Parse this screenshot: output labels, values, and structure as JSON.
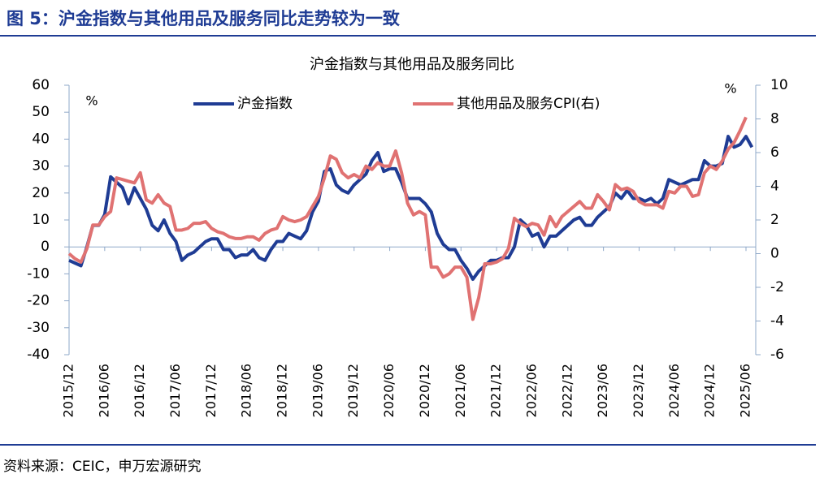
{
  "figure_title": "图 5：沪金指数与其他用品及服务同比走势较为一致",
  "source": "资料来源：CEIC，申万宏源研究",
  "chart_data": {
    "type": "line",
    "title": "沪金指数与其他用品及服务同比",
    "y_label": "%",
    "y2_label": "%",
    "legend": "top",
    "categories": [
      "2015/12",
      null,
      null,
      null,
      null,
      null,
      "2016/06",
      null,
      null,
      null,
      null,
      null,
      "2016/12",
      null,
      null,
      null,
      null,
      null,
      "2017/06",
      null,
      null,
      null,
      null,
      null,
      "2017/12",
      null,
      null,
      null,
      null,
      null,
      "2018/06",
      null,
      null,
      null,
      null,
      null,
      "2018/12",
      null,
      null,
      null,
      null,
      null,
      "2019/06",
      null,
      null,
      null,
      null,
      null,
      "2019/12",
      null,
      null,
      null,
      null,
      null,
      "2020/06",
      null,
      null,
      null,
      null,
      null,
      "2020/12",
      null,
      null,
      null,
      null,
      null,
      "2021/06",
      null,
      null,
      null,
      null,
      null,
      "2021/12",
      null,
      null,
      null,
      null,
      null,
      "2022/06",
      null,
      null,
      null,
      null,
      null,
      "2022/12",
      null,
      null,
      null,
      null,
      null,
      "2023/06",
      null,
      null,
      null,
      null,
      null,
      "2023/12",
      null,
      null,
      null,
      null,
      null,
      "2024/06",
      null,
      null,
      null,
      null,
      null,
      "2024/12",
      null,
      null,
      null,
      null,
      null,
      "2025/06",
      null
    ],
    "series": [
      {
        "name": "沪金指数",
        "color": "#1f3c94",
        "axis": "y",
        "values": [
          -5,
          -6,
          -7,
          0,
          8,
          8,
          12,
          26,
          24,
          22,
          16,
          22,
          18,
          14,
          8,
          6,
          10,
          5,
          2,
          -5,
          -3,
          -2,
          0,
          2,
          3,
          3,
          -1,
          -1,
          -4,
          -3,
          -3,
          -1,
          -4,
          -5,
          -1,
          2,
          2,
          5,
          4,
          3,
          6,
          13,
          17,
          28,
          29,
          23,
          21,
          20,
          23,
          25,
          27,
          32,
          35,
          28,
          29,
          29,
          24,
          18,
          18,
          18,
          16,
          13,
          5,
          1,
          -1,
          -1,
          -5,
          -8,
          -12,
          -9,
          -7,
          -5,
          -5,
          -4,
          -4,
          0,
          10,
          8,
          4,
          5,
          0,
          4,
          4,
          6,
          8,
          10,
          11,
          8,
          8,
          11,
          13,
          15,
          20,
          18,
          21,
          18,
          18,
          17,
          18,
          16,
          18,
          25,
          24,
          23,
          24,
          25,
          25,
          32,
          30,
          30,
          31,
          41,
          37,
          38,
          41,
          37
        ]
      },
      {
        "name": "其他用品及服务CPI(右)",
        "color": "#e07272",
        "axis": "y2",
        "values": [
          0,
          -0.3,
          -0.5,
          0.3,
          1.7,
          1.7,
          2.2,
          2.5,
          4.5,
          4.4,
          4.3,
          4.2,
          4.8,
          3.2,
          3.0,
          3.5,
          3.0,
          2.8,
          1.4,
          1.4,
          1.5,
          1.8,
          1.8,
          1.9,
          1.5,
          1.3,
          1.2,
          1.0,
          0.9,
          0.9,
          1.0,
          1.0,
          0.8,
          1.2,
          1.4,
          1.5,
          2.2,
          2.0,
          1.9,
          2.0,
          2.2,
          2.8,
          3.4,
          4.5,
          5.8,
          5.6,
          4.8,
          4.5,
          4.7,
          4.5,
          5.2,
          5.0,
          5.4,
          5.2,
          5.2,
          6.1,
          4.8,
          3.0,
          2.3,
          2.5,
          2.3,
          -0.8,
          -0.8,
          -1.4,
          -1.2,
          -0.8,
          -0.8,
          -1.4,
          -3.9,
          -2.6,
          -0.6,
          -0.6,
          -0.5,
          -0.3,
          0.3,
          2.1,
          1.8,
          1.6,
          1.8,
          1.7,
          1.1,
          2.2,
          1.6,
          2.2,
          2.5,
          2.8,
          3.1,
          2.7,
          2.7,
          3.5,
          3.1,
          2.6,
          4.1,
          3.8,
          3.9,
          3.7,
          3.1,
          2.9,
          2.9,
          2.9,
          2.7,
          3.7,
          3.6,
          4.0,
          4.0,
          3.4,
          3.5,
          4.8,
          5.2,
          5.0,
          5.5,
          6.2,
          6.6,
          7.3,
          8.1,
          null
        ]
      }
    ],
    "ylim": [
      -40,
      60
    ],
    "yticks": [
      -40,
      -30,
      -20,
      -10,
      0,
      10,
      20,
      30,
      40,
      50,
      60
    ],
    "y2lim": [
      -6,
      10
    ],
    "y2ticks": [
      -6,
      -4,
      -2,
      0,
      2,
      4,
      6,
      8,
      10
    ]
  }
}
